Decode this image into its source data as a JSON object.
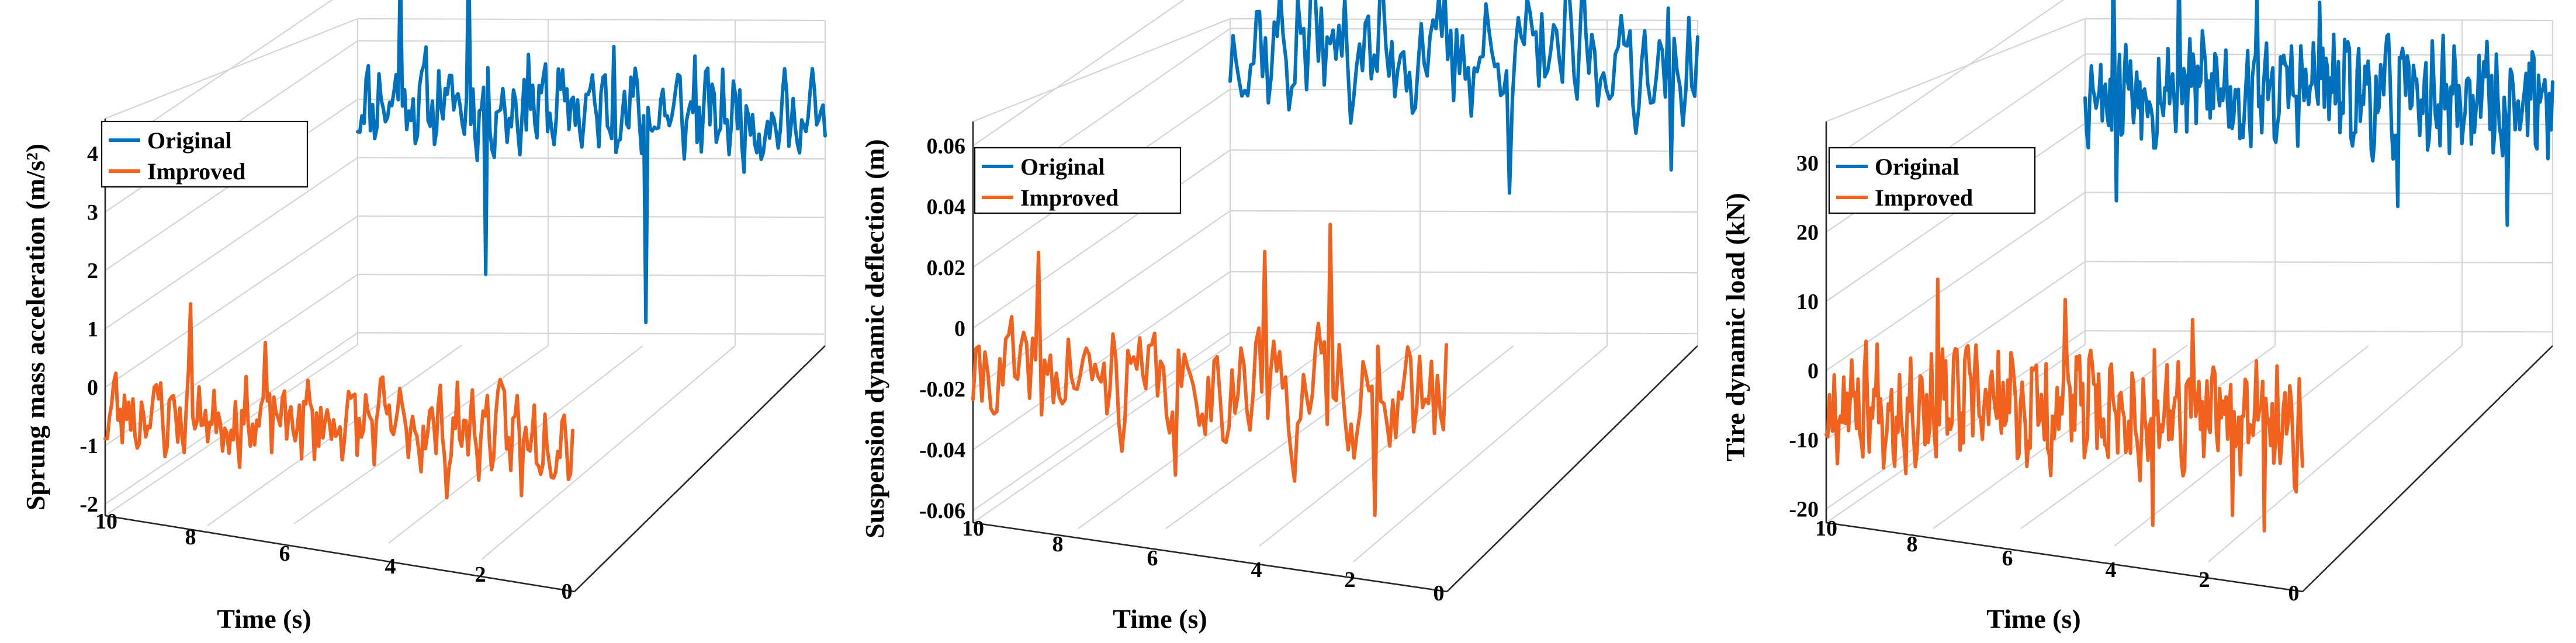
{
  "colors": {
    "original": "#0072BD",
    "improved": "#F0621E"
  },
  "chart_data": [
    {
      "type": "line",
      "title": "",
      "xlabel": "Time (s)",
      "ylabel": "Sprung mass acceleration (m/s²)",
      "ylim": [
        -2.2,
        4.6
      ],
      "yticks": [
        "-2",
        "-1",
        "0",
        "1",
        "2",
        "3",
        "4"
      ],
      "yticks_values": [
        -2,
        -1,
        0,
        1,
        2,
        3,
        4
      ],
      "xticks": [
        "10",
        "8",
        "6",
        "4",
        "2",
        "0"
      ],
      "xticks_values": [
        10,
        8,
        6,
        4,
        2,
        0
      ],
      "legend": {
        "location": "top-left",
        "entries": [
          "Original",
          "Improved"
        ]
      },
      "series": [
        {
          "name": "Original",
          "offset_value": 2.0,
          "amplitude": 0.75,
          "points": 220,
          "spikes": [
            [
              20,
              4.3
            ],
            [
              52,
              4.7
            ],
            [
              80,
              2.9
            ],
            [
              120,
              3.1
            ],
            [
              158,
              3.0
            ],
            [
              176,
              2.6
            ]
          ],
          "spike_down": [
            [
              60,
              -0.9
            ],
            [
              135,
              -1.6
            ]
          ],
          "seed": 11
        },
        {
          "name": "Improved",
          "offset_value": -0.4,
          "amplitude": 0.7,
          "points": 220,
          "spikes": [
            [
              40,
              1.5
            ],
            [
              75,
              0.9
            ]
          ],
          "spike_down": [
            [
              160,
              -1.6
            ],
            [
              195,
              -1.5
            ]
          ],
          "seed": 23
        }
      ]
    },
    {
      "type": "line",
      "title": "",
      "xlabel": "Time (s)",
      "ylabel": "Suspension dynamic deflection (m)",
      "ylim": [
        -0.064,
        0.068
      ],
      "yticks": [
        "-0.06",
        "-0.04",
        "-0.02",
        "0",
        "0.02",
        "0.04",
        "0.06"
      ],
      "yticks_values": [
        -0.06,
        -0.04,
        -0.02,
        0,
        0.02,
        0.04,
        0.06
      ],
      "xticks": [
        "10",
        "8",
        "6",
        "4",
        "2",
        "0"
      ],
      "xticks_values": [
        10,
        8,
        6,
        4,
        2,
        0
      ],
      "legend": {
        "location": "top-left",
        "entries": [
          "Original",
          "Improved"
        ]
      },
      "series": [
        {
          "name": "Original",
          "offset_value": 0.035,
          "amplitude": 0.02,
          "points": 160,
          "spikes": [
            [
              28,
              0.07
            ],
            [
              120,
              0.065
            ]
          ],
          "spike_down": [
            [
              95,
              -0.01
            ],
            [
              150,
              0.0
            ]
          ],
          "seed": 37
        },
        {
          "name": "Improved",
          "offset_value": -0.015,
          "amplitude": 0.018,
          "points": 160,
          "spikes": [
            [
              22,
              0.026
            ],
            [
              98,
              0.03
            ],
            [
              120,
              0.04
            ]
          ],
          "spike_down": [
            [
              68,
              -0.045
            ],
            [
              108,
              -0.045
            ],
            [
              135,
              -0.055
            ]
          ],
          "seed": 41
        }
      ]
    },
    {
      "type": "line",
      "title": "",
      "xlabel": "Time (s)",
      "ylabel": "Tire dynamic load (kN)",
      "ylim": [
        -22,
        36
      ],
      "yticks": [
        "-20",
        "-10",
        "0",
        "10",
        "20",
        "30"
      ],
      "yticks_values": [
        -20,
        -10,
        0,
        10,
        20,
        30
      ],
      "xticks": [
        "10",
        "8",
        "6",
        "4",
        "2",
        "0"
      ],
      "xticks_values": [
        10,
        8,
        6,
        4,
        2,
        0
      ],
      "legend": {
        "location": "top-left",
        "entries": [
          "Original",
          "Improved"
        ]
      },
      "series": [
        {
          "name": "Original",
          "offset_value": 16,
          "amplitude": 8,
          "points": 300,
          "spikes": [
            [
              18,
              36
            ],
            [
              60,
              35
            ],
            [
              110,
              30
            ],
            [
              150,
              29
            ]
          ],
          "spike_down": [
            [
              20,
              -1
            ],
            [
              200,
              0
            ],
            [
              270,
              -2
            ]
          ],
          "seed": 53
        },
        {
          "name": "Improved",
          "offset_value": -4,
          "amplitude": 8,
          "points": 300,
          "spikes": [
            [
              70,
              14
            ],
            [
              150,
              12
            ],
            [
              230,
              10
            ]
          ],
          "spike_down": [
            [
              205,
              -20
            ],
            [
              255,
              -18
            ],
            [
              275,
              -20
            ]
          ],
          "seed": 67
        }
      ]
    }
  ]
}
